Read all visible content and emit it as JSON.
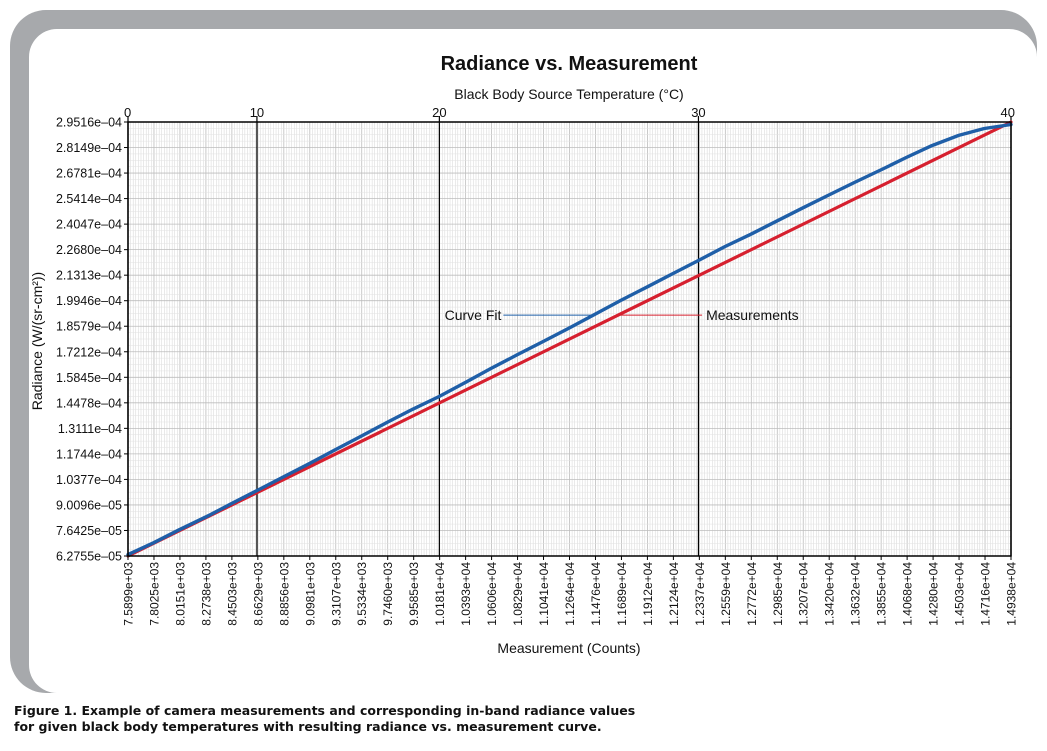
{
  "caption": {
    "line1": "Figure 1. Example of camera measurements and corresponding in-band radiance values",
    "line2": "for given black body temperatures with resulting radiance vs. measurement curve."
  },
  "colors": {
    "frame": "#a7a9ac",
    "curve_fit": "#1f5fa8",
    "measurements": "#d6202f",
    "grid": "#d4d4d4",
    "major_line": "#000000"
  },
  "chart_data": {
    "type": "line",
    "title": "Radiance vs. Measurement",
    "xlabel": "Measurement (Counts)",
    "ylabel": "Radiance (W/(sr-cm²))",
    "x2label": "Black Body Source Temperature (°C)",
    "xlim": [
      7589.9,
      14938
    ],
    "ylim": [
      6.2755e-05,
      0.00029516
    ],
    "x2lim": [
      0,
      40
    ],
    "x_ticks": [
      "7.5899e+03",
      "7.8025e+03",
      "8.0151e+03",
      "8.2738e+03",
      "8.4503e+03",
      "8.6629e+03",
      "8.8856e+03",
      "9.0981e+03",
      "9.3107e+03",
      "9.5334e+03",
      "9.7460e+03",
      "9.9585e+03",
      "1.0181e+04",
      "1.0393e+04",
      "1.0606e+04",
      "1.0829e+04",
      "1.1041e+04",
      "1.1264e+04",
      "1.1476e+04",
      "1.1689e+04",
      "1.1912e+04",
      "1.2124e+04",
      "1.2337e+04",
      "1.2559e+04",
      "1.2772e+04",
      "1.2985e+04",
      "1.3207e+04",
      "1.3420e+04",
      "1.3632e+04",
      "1.3855e+04",
      "1.4068e+04",
      "1.4280e+04",
      "1.4503e+04",
      "1.4716e+04",
      "1.4938e+04"
    ],
    "y_ticks": [
      "2.9516e–04",
      "2.8149e–04",
      "2.6781e–04",
      "2.5414e–04",
      "2.4047e–04",
      "2.2680e–04",
      "2.1313e–04",
      "1.9946e–04",
      "1.8579e–04",
      "1.7212e–04",
      "1.5845e–04",
      "1.4478e–04",
      "1.3111e–04",
      "1.1744e–04",
      "1.0377e–04",
      "9.0096e–05",
      "7.6425e–05",
      "6.2755e–05"
    ],
    "x2_ticks": [
      {
        "label": "0",
        "x": 7589.9
      },
      {
        "label": "10",
        "x": 8662.9
      },
      {
        "label": "20",
        "x": 10181
      },
      {
        "label": "30",
        "x": 12337
      },
      {
        "label": "40",
        "x": 14938
      }
    ],
    "series": [
      {
        "name": "Measurements",
        "color": "#d6202f",
        "x": [
          7589.9,
          14938
        ],
        "y": [
          6.2755e-05,
          0.00029516
        ]
      },
      {
        "name": "Curve Fit",
        "color": "#1f5fa8",
        "x": [
          7589.9,
          7802.5,
          8015.1,
          8273.8,
          8450.3,
          8662.9,
          8885.6,
          9098.1,
          9310.7,
          9533.4,
          9746.0,
          9958.5,
          10181,
          10393,
          10606,
          10829,
          11041,
          11264,
          11476,
          11689,
          11912,
          12124,
          12337,
          12559,
          12772,
          12985,
          13207,
          13420,
          13632,
          13855,
          14068,
          14280,
          14503,
          14716,
          14938
        ],
        "y": [
          6.35e-05,
          6.98e-05,
          7.68e-05,
          8.48e-05,
          9.08e-05,
          9.78e-05,
          0.0001052,
          0.0001122,
          0.0001195,
          0.000127,
          0.0001343,
          0.0001413,
          0.0001482,
          0.0001555,
          0.000163,
          0.0001705,
          0.0001775,
          0.0001849,
          0.0001922,
          0.0001996,
          0.0002069,
          0.000214,
          0.000221,
          0.0002285,
          0.000235,
          0.000242,
          0.0002492,
          0.000256,
          0.0002627,
          0.0002695,
          0.0002762,
          0.0002825,
          0.000288,
          0.0002917,
          0.0002938
        ]
      }
    ],
    "annotations": [
      {
        "text": "Curve Fit",
        "series": "Curve Fit",
        "side": "left"
      },
      {
        "text": "Measurements",
        "series": "Measurements",
        "side": "right"
      }
    ]
  }
}
